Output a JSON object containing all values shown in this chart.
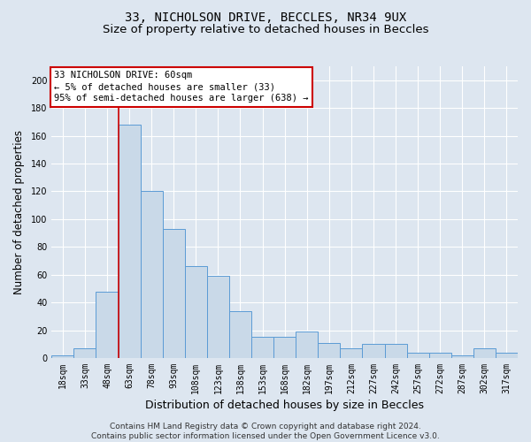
{
  "title_line1": "33, NICHOLSON DRIVE, BECCLES, NR34 9UX",
  "title_line2": "Size of property relative to detached houses in Beccles",
  "xlabel": "Distribution of detached houses by size in Beccles",
  "ylabel": "Number of detached properties",
  "footnote": "Contains HM Land Registry data © Crown copyright and database right 2024.\nContains public sector information licensed under the Open Government Licence v3.0.",
  "categories": [
    "18sqm",
    "33sqm",
    "48sqm",
    "63sqm",
    "78sqm",
    "93sqm",
    "108sqm",
    "123sqm",
    "138sqm",
    "153sqm",
    "168sqm",
    "182sqm",
    "197sqm",
    "212sqm",
    "227sqm",
    "242sqm",
    "257sqm",
    "272sqm",
    "287sqm",
    "302sqm",
    "317sqm"
  ],
  "values": [
    2,
    7,
    48,
    168,
    120,
    93,
    66,
    59,
    34,
    15,
    15,
    19,
    11,
    7,
    10,
    10,
    4,
    4,
    2,
    7,
    4
  ],
  "bar_color": "#c9d9e8",
  "bar_edge_color": "#5b9bd5",
  "annotation_text": "33 NICHOLSON DRIVE: 60sqm\n← 5% of detached houses are smaller (33)\n95% of semi-detached houses are larger (638) →",
  "annotation_box_color": "white",
  "annotation_box_edge_color": "#cc0000",
  "vline_color": "#cc0000",
  "ylim": [
    0,
    210
  ],
  "yticks": [
    0,
    20,
    40,
    60,
    80,
    100,
    120,
    140,
    160,
    180,
    200
  ],
  "background_color": "#dde6f0",
  "plot_background": "#dde6f0",
  "grid_color": "white",
  "title_fontsize": 10,
  "subtitle_fontsize": 9.5,
  "xlabel_fontsize": 9,
  "ylabel_fontsize": 8.5,
  "tick_fontsize": 7,
  "annotation_fontsize": 7.5,
  "footnote_fontsize": 6.5
}
